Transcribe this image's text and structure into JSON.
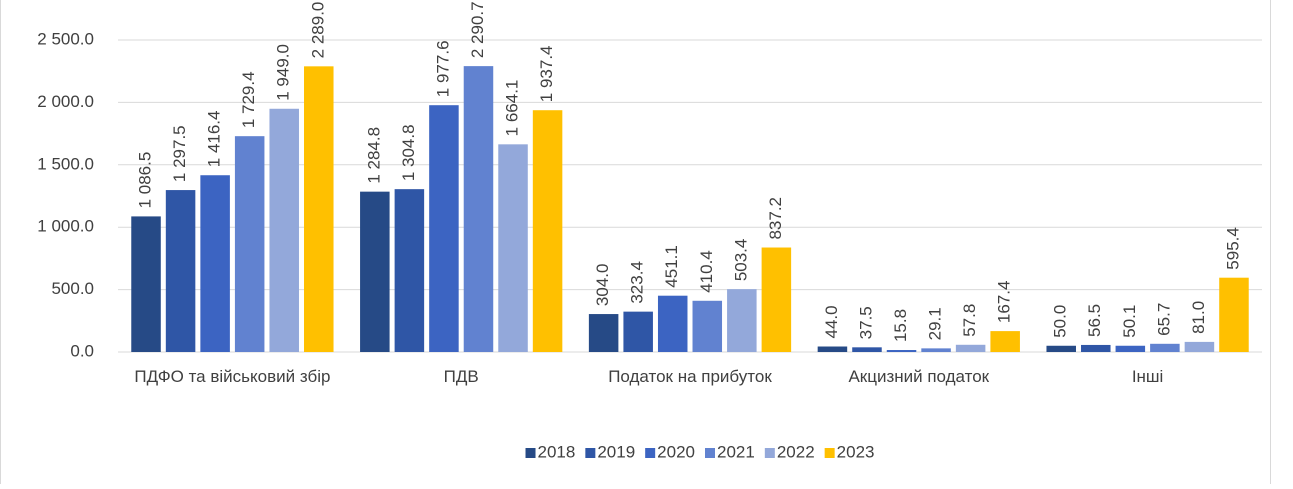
{
  "chart_data": {
    "type": "bar",
    "categories": [
      "ПДФО та військовий збір",
      "ПДВ",
      "Податок на прибуток",
      "Акцизний податок",
      "Інші"
    ],
    "series": [
      {
        "name": "2018",
        "color": "#264a86",
        "values": [
          1086.5,
          1284.8,
          304.0,
          44.0,
          50.0
        ],
        "value_labels": [
          "1 086.5",
          "1 284.8",
          "304.0",
          "44.0",
          "50.0"
        ]
      },
      {
        "name": "2019",
        "color": "#2f56a6",
        "values": [
          1297.5,
          1304.8,
          323.4,
          37.5,
          56.5
        ],
        "value_labels": [
          "1 297.5",
          "1 304.8",
          "323.4",
          "37.5",
          "56.5"
        ]
      },
      {
        "name": "2020",
        "color": "#3c64c2",
        "values": [
          1416.4,
          1977.6,
          451.1,
          15.8,
          50.1
        ],
        "value_labels": [
          "1 416.4",
          "1 977.6",
          "451.1",
          "15.8",
          "50.1"
        ]
      },
      {
        "name": "2021",
        "color": "#6182d0",
        "values": [
          1729.4,
          2290.7,
          410.4,
          29.1,
          65.7
        ],
        "value_labels": [
          "1 729.4",
          "2 290.7",
          "410.4",
          "29.1",
          "65.7"
        ]
      },
      {
        "name": "2022",
        "color": "#93a8da",
        "values": [
          1949.0,
          1664.1,
          503.4,
          57.8,
          81.0
        ],
        "value_labels": [
          "1 949.0",
          "1 664.1",
          "503.4",
          "57.8",
          "81.0"
        ]
      },
      {
        "name": "2023",
        "color": "#ffc000",
        "values": [
          2289.0,
          1937.4,
          837.2,
          167.4,
          595.4
        ],
        "value_labels": [
          "2 289.0",
          "1 937.4",
          "837.2",
          "167.4",
          "595.4"
        ]
      }
    ],
    "ylim": [
      0,
      2500
    ],
    "yticks": [
      {
        "value": 0,
        "label": "0.0"
      },
      {
        "value": 500,
        "label": "500.0"
      },
      {
        "value": 1000,
        "label": "1 000.0"
      },
      {
        "value": 1500,
        "label": "1 500.0"
      },
      {
        "value": 2000,
        "label": "2 000.0"
      },
      {
        "value": 2500,
        "label": "2 500.0"
      }
    ],
    "grid": true,
    "legend": "bottom"
  }
}
